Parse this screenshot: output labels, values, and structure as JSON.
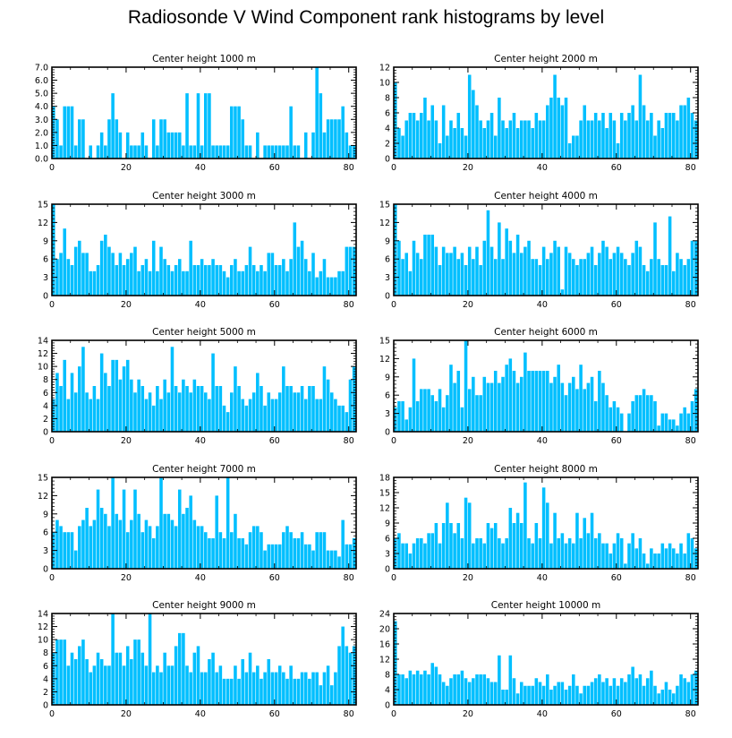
{
  "figure": {
    "title": "Radiosonde V Wind Component rank histograms by level"
  },
  "chart_data": [
    {
      "type": "bar",
      "title": "Center height 1000 m",
      "ylim": [
        0,
        7
      ],
      "yticks": [
        "0.0",
        "1.0",
        "2.0",
        "3.0",
        "4.0",
        "5.0",
        "6.0",
        "7.0"
      ],
      "xlim": [
        0,
        82
      ],
      "xticks": [
        "0",
        "20",
        "40",
        "60",
        "80"
      ],
      "values": [
        4,
        3,
        1,
        4,
        4,
        4,
        1,
        3,
        3,
        0,
        1,
        0,
        1,
        2,
        1,
        3,
        5,
        3,
        2,
        0,
        2,
        1,
        1,
        1,
        2,
        1,
        0,
        3,
        1,
        3,
        3,
        2,
        2,
        2,
        2,
        1,
        5,
        1,
        1,
        5,
        1,
        5,
        5,
        1,
        1,
        1,
        1,
        1,
        4,
        4,
        4,
        3,
        1,
        1,
        0,
        2,
        0,
        1,
        1,
        1,
        1,
        1,
        1,
        1,
        4,
        1,
        1,
        0,
        2,
        0,
        2,
        7,
        5,
        2,
        3,
        3,
        3,
        3,
        4,
        2,
        1,
        1
      ]
    },
    {
      "type": "bar",
      "title": "Center height 2000 m",
      "ylim": [
        0,
        12
      ],
      "yticks": [
        "0",
        "2",
        "4",
        "6",
        "8",
        "10",
        "12"
      ],
      "xlim": [
        0,
        82
      ],
      "xticks": [
        "0",
        "20",
        "40",
        "60",
        "80"
      ],
      "values": [
        10,
        4,
        3,
        5,
        6,
        6,
        5,
        6,
        8,
        5,
        7,
        5,
        2,
        7,
        3,
        5,
        4,
        6,
        4,
        3,
        11,
        9,
        7,
        5,
        4,
        5,
        6,
        3,
        8,
        5,
        4,
        5,
        6,
        4,
        5,
        5,
        5,
        4,
        6,
        5,
        5,
        7,
        8,
        11,
        8,
        7,
        8,
        2,
        3,
        3,
        5,
        7,
        5,
        5,
        6,
        5,
        6,
        4,
        6,
        5,
        2,
        6,
        5,
        6,
        7,
        5,
        11,
        7,
        5,
        6,
        3,
        5,
        4,
        6,
        6,
        6,
        5,
        7,
        7,
        8,
        6,
        5
      ]
    },
    {
      "type": "bar",
      "title": "Center height 3000 m",
      "ylim": [
        0,
        15
      ],
      "yticks": [
        "0",
        "3",
        "6",
        "9",
        "12",
        "15"
      ],
      "xlim": [
        0,
        82
      ],
      "xticks": [
        "0",
        "20",
        "40",
        "60",
        "80"
      ],
      "values": [
        15,
        6,
        7,
        11,
        6,
        5,
        8,
        9,
        7,
        7,
        4,
        4,
        5,
        9,
        10,
        8,
        7,
        5,
        7,
        5,
        6,
        7,
        8,
        4,
        5,
        6,
        4,
        9,
        4,
        8,
        6,
        5,
        4,
        5,
        6,
        4,
        4,
        9,
        5,
        5,
        6,
        5,
        5,
        6,
        5,
        5,
        4,
        3,
        5,
        6,
        4,
        4,
        5,
        8,
        5,
        4,
        5,
        4,
        7,
        7,
        5,
        5,
        6,
        4,
        6,
        12,
        8,
        9,
        6,
        4,
        7,
        3,
        4,
        6,
        3,
        3,
        3,
        4,
        4,
        8,
        8,
        8
      ]
    },
    {
      "type": "bar",
      "title": "Center height 4000 m",
      "ylim": [
        0,
        15
      ],
      "yticks": [
        "0",
        "3",
        "6",
        "9",
        "12",
        "15"
      ],
      "xlim": [
        0,
        82
      ],
      "xticks": [
        "0",
        "20",
        "40",
        "60",
        "80"
      ],
      "values": [
        15,
        9,
        6,
        7,
        4,
        9,
        7,
        6,
        10,
        10,
        10,
        8,
        5,
        8,
        7,
        7,
        8,
        6,
        7,
        5,
        8,
        6,
        8,
        5,
        9,
        14,
        8,
        6,
        12,
        6,
        11,
        9,
        7,
        10,
        7,
        8,
        9,
        6,
        6,
        5,
        8,
        6,
        7,
        9,
        8,
        1,
        8,
        7,
        6,
        5,
        6,
        6,
        7,
        8,
        5,
        7,
        9,
        8,
        6,
        7,
        8,
        7,
        6,
        5,
        7,
        9,
        8,
        5,
        4,
        6,
        12,
        6,
        5,
        5,
        13,
        4,
        7,
        6,
        5,
        6,
        9,
        9
      ]
    },
    {
      "type": "bar",
      "title": "Center height 5000 m",
      "ylim": [
        0,
        14
      ],
      "yticks": [
        "0",
        "2",
        "4",
        "6",
        "8",
        "10",
        "12",
        "14"
      ],
      "xlim": [
        0,
        82
      ],
      "xticks": [
        "0",
        "20",
        "40",
        "60",
        "80"
      ],
      "values": [
        5,
        9,
        7,
        11,
        5,
        9,
        6,
        10,
        13,
        6,
        5,
        7,
        5,
        12,
        9,
        7,
        11,
        11,
        8,
        10,
        11,
        8,
        6,
        8,
        7,
        5,
        6,
        4,
        7,
        5,
        8,
        6,
        13,
        7,
        6,
        8,
        7,
        6,
        8,
        7,
        7,
        6,
        5,
        12,
        7,
        7,
        4,
        3,
        6,
        10,
        7,
        5,
        4,
        5,
        6,
        9,
        7,
        4,
        6,
        5,
        5,
        6,
        10,
        7,
        7,
        6,
        6,
        7,
        5,
        7,
        7,
        5,
        5,
        10,
        8,
        6,
        5,
        4,
        4,
        3,
        8,
        10
      ]
    },
    {
      "type": "bar",
      "title": "Center height 6000 m",
      "ylim": [
        0,
        15
      ],
      "yticks": [
        "0",
        "3",
        "6",
        "9",
        "12",
        "15"
      ],
      "xlim": [
        0,
        82
      ],
      "xticks": [
        "0",
        "20",
        "40",
        "60",
        "80"
      ],
      "values": [
        4,
        5,
        5,
        2,
        4,
        12,
        5,
        7,
        7,
        7,
        6,
        5,
        7,
        4,
        6,
        11,
        8,
        10,
        4,
        15,
        7,
        9,
        6,
        6,
        9,
        8,
        8,
        10,
        8,
        9,
        11,
        12,
        10,
        8,
        9,
        13,
        10,
        10,
        10,
        10,
        10,
        10,
        8,
        9,
        11,
        8,
        6,
        8,
        9,
        7,
        11,
        7,
        8,
        9,
        5,
        10,
        8,
        6,
        4,
        5,
        4,
        3,
        0,
        3,
        5,
        6,
        6,
        7,
        6,
        6,
        5,
        1,
        3,
        3,
        2,
        2,
        1,
        3,
        4,
        3,
        5,
        7
      ]
    },
    {
      "type": "bar",
      "title": "Center height 7000 m",
      "ylim": [
        0,
        15
      ],
      "yticks": [
        "0",
        "3",
        "6",
        "9",
        "12",
        "15"
      ],
      "xlim": [
        0,
        82
      ],
      "xticks": [
        "0",
        "20",
        "40",
        "60",
        "80"
      ],
      "values": [
        6,
        8,
        7,
        6,
        6,
        6,
        3,
        7,
        8,
        10,
        7,
        8,
        13,
        10,
        9,
        7,
        15,
        9,
        8,
        13,
        6,
        8,
        13,
        9,
        6,
        8,
        7,
        5,
        7,
        15,
        9,
        9,
        8,
        7,
        13,
        9,
        10,
        12,
        8,
        7,
        7,
        6,
        5,
        5,
        12,
        6,
        5,
        15,
        6,
        9,
        5,
        5,
        4,
        6,
        7,
        7,
        6,
        3,
        4,
        4,
        4,
        4,
        6,
        7,
        6,
        5,
        5,
        6,
        4,
        4,
        3,
        6,
        6,
        6,
        3,
        3,
        3,
        2,
        8,
        4,
        4,
        5
      ]
    },
    {
      "type": "bar",
      "title": "Center height 8000 m",
      "ylim": [
        0,
        18
      ],
      "yticks": [
        "0",
        "3",
        "6",
        "9",
        "12",
        "15",
        "18"
      ],
      "xlim": [
        0,
        82
      ],
      "xticks": [
        "0",
        "20",
        "40",
        "60",
        "80"
      ],
      "values": [
        6,
        7,
        5,
        5,
        3,
        5,
        6,
        6,
        5,
        7,
        7,
        9,
        5,
        9,
        13,
        9,
        7,
        9,
        6,
        14,
        13,
        5,
        6,
        6,
        5,
        9,
        8,
        9,
        6,
        5,
        6,
        12,
        9,
        11,
        9,
        17,
        6,
        5,
        9,
        6,
        16,
        13,
        5,
        11,
        6,
        7,
        5,
        6,
        5,
        11,
        6,
        10,
        7,
        11,
        6,
        7,
        5,
        5,
        3,
        5,
        7,
        6,
        1,
        5,
        7,
        4,
        6,
        3,
        1,
        4,
        3,
        3,
        5,
        4,
        5,
        4,
        3,
        5,
        3,
        7,
        6,
        4
      ]
    },
    {
      "type": "bar",
      "title": "Center height 9000 m",
      "ylim": [
        0,
        14
      ],
      "yticks": [
        "0",
        "2",
        "4",
        "6",
        "8",
        "10",
        "12",
        "14"
      ],
      "xlim": [
        0,
        82
      ],
      "xticks": [
        "0",
        "20",
        "40",
        "60",
        "80"
      ],
      "values": [
        8,
        10,
        10,
        10,
        6,
        8,
        7,
        9,
        10,
        7,
        5,
        6,
        8,
        7,
        6,
        6,
        14,
        8,
        8,
        6,
        9,
        7,
        10,
        10,
        8,
        6,
        14,
        5,
        6,
        5,
        8,
        6,
        6,
        9,
        11,
        11,
        6,
        5,
        8,
        9,
        5,
        5,
        7,
        8,
        5,
        6,
        4,
        4,
        4,
        6,
        4,
        7,
        5,
        8,
        5,
        6,
        4,
        5,
        7,
        5,
        5,
        6,
        5,
        4,
        6,
        4,
        4,
        5,
        5,
        4,
        5,
        5,
        3,
        5,
        6,
        3,
        5,
        9,
        12,
        9,
        8,
        9
      ]
    },
    {
      "type": "bar",
      "title": "Center height 10000 m",
      "ylim": [
        0,
        24
      ],
      "yticks": [
        "0",
        "4",
        "8",
        "12",
        "16",
        "20",
        "24"
      ],
      "xlim": [
        0,
        82
      ],
      "xticks": [
        "0",
        "20",
        "40",
        "60",
        "80"
      ],
      "values": [
        22,
        8,
        8,
        7,
        9,
        8,
        9,
        8,
        9,
        8,
        11,
        10,
        8,
        6,
        5,
        7,
        8,
        8,
        9,
        7,
        6,
        7,
        8,
        8,
        8,
        7,
        6,
        6,
        13,
        4,
        4,
        13,
        7,
        3,
        6,
        5,
        5,
        5,
        7,
        6,
        5,
        8,
        4,
        5,
        6,
        6,
        4,
        5,
        8,
        5,
        3,
        5,
        5,
        6,
        7,
        8,
        6,
        7,
        5,
        7,
        5,
        7,
        6,
        8,
        10,
        7,
        8,
        5,
        7,
        9,
        5,
        3,
        4,
        6,
        4,
        3,
        5,
        8,
        7,
        6,
        8,
        9
      ]
    }
  ]
}
